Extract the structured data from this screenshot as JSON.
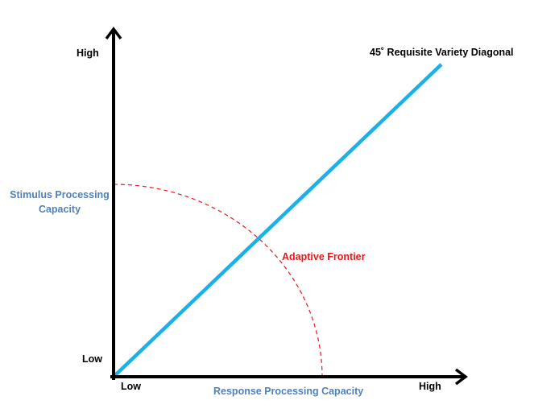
{
  "diagram": {
    "y_axis": {
      "high_label": "High",
      "low_label": "Low",
      "title_line1": "Stimulus Processing",
      "title_line2": "Capacity"
    },
    "x_axis": {
      "low_label": "Low",
      "high_label": "High",
      "title": "Response Processing Capacity"
    },
    "diagonal": {
      "label": "45˚ Requisite Variety Diagonal",
      "color": "#1ab0e8"
    },
    "frontier": {
      "label": "Adaptive Frontier",
      "color": "#e8191d"
    },
    "colors": {
      "axes": "#000000",
      "axis_titles": "#4f81bd"
    }
  }
}
